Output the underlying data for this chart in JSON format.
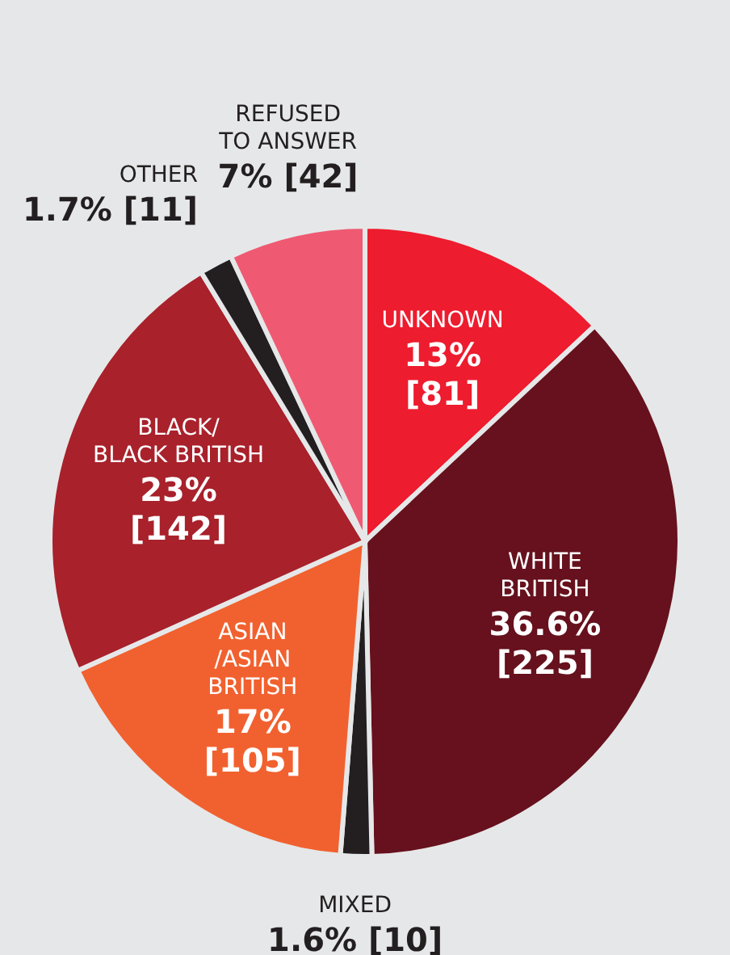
{
  "chart_data": {
    "type": "pie",
    "categories": [
      "UNKNOWN",
      "WHITE\nBRITISH",
      "MIXED",
      "ASIAN\n/ASIAN\nBRITISH",
      "BLACK/\nBLACK BRITISH",
      "OTHER",
      "REFUSED\nTO ANSWER"
    ],
    "values": [
      13,
      36.6,
      1.6,
      17,
      23,
      1.7,
      7
    ],
    "colors": [
      "#ed1c2e",
      "#66111d",
      "#231f20",
      "#f1612f",
      "#a8212b",
      "#231f20",
      "#ef5a72"
    ],
    "value_labels": [
      "13% [81]",
      "36.6% [225]",
      "1.6% [10]",
      "17% [105]",
      "23% [142]",
      "1.7% [11]",
      "7% [42]"
    ]
  }
}
